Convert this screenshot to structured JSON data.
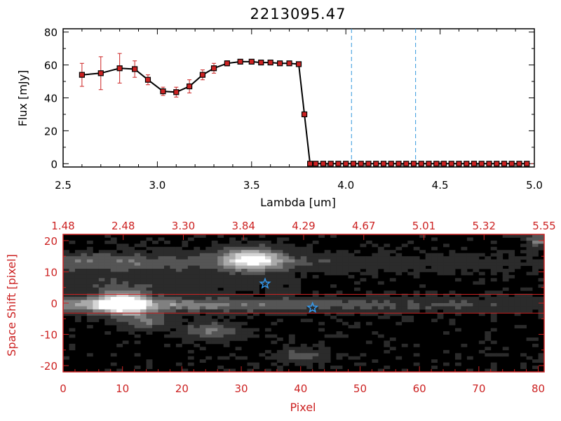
{
  "chart_data": [
    {
      "type": "line",
      "title": "2213095.47",
      "xlabel": "Lambda [um]",
      "ylabel": "Flux [mJy]",
      "xlim": [
        2.5,
        5.0
      ],
      "ylim": [
        -2,
        82
      ],
      "x_ticks": [
        "2.5",
        "3.0",
        "3.5",
        "4.0",
        "4.5",
        "5.0"
      ],
      "y_ticks": [
        "0",
        "20",
        "40",
        "60",
        "80"
      ],
      "series": [
        {
          "name": "flux",
          "color": "#000000",
          "marker_color": "#cc2222",
          "x": [
            2.6,
            2.7,
            2.8,
            2.88,
            2.95,
            3.03,
            3.1,
            3.17,
            3.24,
            3.3,
            3.37,
            3.44,
            3.5,
            3.55,
            3.6,
            3.65,
            3.7,
            3.75,
            3.78,
            3.81,
            3.84,
            3.88,
            3.92,
            3.96,
            4.0,
            4.04,
            4.08,
            4.12,
            4.16,
            4.2,
            4.24,
            4.28,
            4.32,
            4.36,
            4.4,
            4.44,
            4.48,
            4.52,
            4.56,
            4.6,
            4.64,
            4.68,
            4.72,
            4.76,
            4.8,
            4.84,
            4.88,
            4.92,
            4.96
          ],
          "y": [
            54,
            55,
            58,
            57.5,
            51,
            44,
            43.5,
            47,
            54,
            58,
            61,
            62,
            62,
            61.5,
            61.5,
            61,
            61,
            60.5,
            30,
            0,
            0,
            0,
            0,
            0,
            0,
            0,
            0,
            0,
            0,
            0,
            0,
            0,
            0,
            0,
            0,
            0,
            0,
            0,
            0,
            0,
            0,
            0,
            0,
            0,
            0,
            0,
            0,
            0,
            0
          ],
          "yerr": [
            7,
            10,
            9,
            5,
            3,
            2.5,
            3,
            4,
            3,
            3,
            1.5,
            1,
            1,
            1,
            1,
            1,
            1,
            1,
            0,
            0,
            0,
            0,
            0,
            0,
            0,
            0,
            0,
            0,
            0,
            0,
            0,
            0,
            0,
            0,
            0,
            0,
            0,
            0,
            0,
            0,
            0,
            0,
            0,
            0,
            0,
            0,
            0,
            0,
            0
          ]
        }
      ],
      "vlines": [
        4.03,
        4.37
      ],
      "vline_color": "#3399dd"
    },
    {
      "type": "heatmap",
      "xlabel": "Pixel",
      "ylabel": "Space Shift [pixel]",
      "xlim": [
        0,
        81
      ],
      "ylim": [
        -22,
        22
      ],
      "x_ticks": [
        "0",
        "10",
        "20",
        "30",
        "40",
        "50",
        "60",
        "70",
        "80"
      ],
      "y_ticks": [
        "20",
        "10",
        "0",
        "-10",
        "-20"
      ],
      "top_ticks": [
        "1.48",
        "2.48",
        "3.30",
        "3.84",
        "4.29",
        "4.67",
        "5.01",
        "5.32",
        "5.55"
      ],
      "hlines": [
        2.8,
        -3.2
      ],
      "line_color": "#cc2222",
      "sources": [
        {
          "x": 10,
          "y": 0,
          "amp": 1.0,
          "sx": 3,
          "sy": 2.5
        },
        {
          "x": 32,
          "y": 14,
          "amp": 0.85,
          "sx": 3.5,
          "sy": 2.5
        },
        {
          "x": 25,
          "y": -9,
          "amp": 0.4,
          "sx": 3,
          "sy": 2
        },
        {
          "x": 14,
          "y": -6,
          "amp": 0.35,
          "sx": 3,
          "sy": 2
        },
        {
          "x": 40,
          "y": -17,
          "amp": 0.35,
          "sx": 3,
          "sy": 1.5
        },
        {
          "x": 80,
          "y": 20,
          "amp": 0.4,
          "sx": 1.5,
          "sy": 1.5
        }
      ],
      "streaks": [
        {
          "x0": 0,
          "x1": 81,
          "y": -0.5,
          "amp": 0.55,
          "sy": 1.6,
          "decay": 55
        },
        {
          "x0": 0,
          "x1": 81,
          "y": 13,
          "amp": 0.35,
          "sy": 2.2,
          "decay": 50
        },
        {
          "x0": 0,
          "x1": 40,
          "y": 6,
          "amp": 0.18,
          "sy": 2.0,
          "decay": 40
        }
      ],
      "stars": [
        {
          "x": 34,
          "y": 6.2
        },
        {
          "x": 42,
          "y": -1.5
        }
      ],
      "star_color": "#3399ee"
    }
  ]
}
